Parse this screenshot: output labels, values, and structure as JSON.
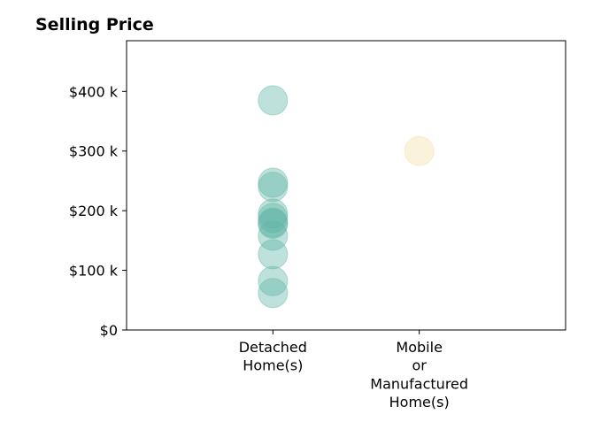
{
  "chart_data": {
    "type": "scatter",
    "title": "Selling Price",
    "xlabel": "",
    "ylabel": "",
    "categories": [
      [
        "Detached",
        "Home(s)"
      ],
      [
        "Mobile",
        "or",
        "Manufactured",
        "Home(s)"
      ]
    ],
    "y_ticks": [
      {
        "value": 0,
        "label": "$0"
      },
      {
        "value": 100000,
        "label": "$100 k"
      },
      {
        "value": 200000,
        "label": "$200 k"
      },
      {
        "value": 300000,
        "label": "$300 k"
      },
      {
        "value": 400000,
        "label": "$400 k"
      }
    ],
    "ylim": [
      0,
      485000
    ],
    "xlim": [
      -1,
      2
    ],
    "grid": false,
    "series": [
      {
        "category_index": 0,
        "color": "#5fb5a6",
        "values": [
          385000,
          247000,
          240000,
          195000,
          188000,
          180000,
          178000,
          158000,
          127000,
          82000,
          62000
        ]
      },
      {
        "category_index": 1,
        "color": "#f5dea6",
        "values": [
          300000
        ]
      }
    ]
  }
}
